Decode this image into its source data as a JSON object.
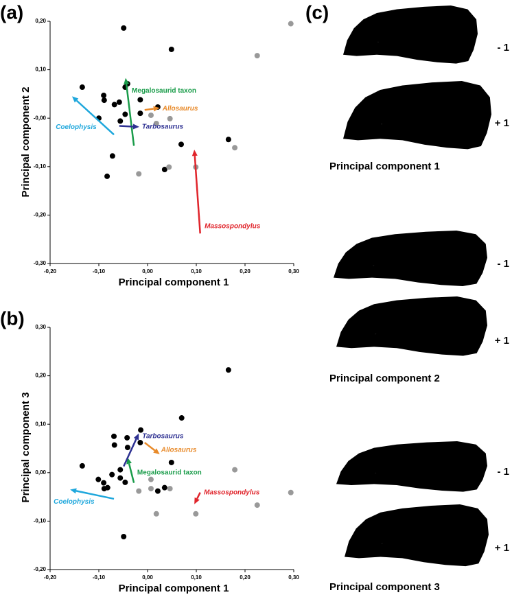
{
  "chart_data": [
    {
      "type": "scatter",
      "label": "(a)",
      "x_label": "Principal component 1",
      "y_label": "Principal component 2",
      "xlim": [
        -0.2,
        0.3
      ],
      "ylim": [
        -0.3,
        0.2
      ],
      "xticks": [
        {
          "value": -0.2,
          "label": "-0,20"
        },
        {
          "value": -0.1,
          "label": "-0,10"
        },
        {
          "value": 0,
          "label": "0,00"
        },
        {
          "value": 0.1,
          "label": "0,10"
        },
        {
          "value": 0.2,
          "label": "0,20"
        },
        {
          "value": 0.3,
          "label": "0,30"
        }
      ],
      "yticks": [
        {
          "value": -0.3,
          "label": "-0,30"
        },
        {
          "value": -0.2,
          "label": "-0,20"
        },
        {
          "value": -0.1,
          "label": "-0,10"
        },
        {
          "value": 0,
          "label": "-0,00"
        },
        {
          "value": 0.1,
          "label": "0,10"
        },
        {
          "value": 0.2,
          "label": "0,20"
        }
      ],
      "series": [
        {
          "color": "#000000",
          "x": [
            -0.049,
            0.049,
            -0.134,
            -0.09,
            -0.089,
            -0.041,
            -0.046,
            -0.058,
            -0.068,
            -0.015,
            -0.046,
            -0.015,
            0.021,
            -0.1,
            -0.056,
            0.069,
            -0.072,
            -0.083,
            0.035,
            0.166
          ],
          "values": [
            0.186,
            0.142,
            0.064,
            0.047,
            0.037,
            0.071,
            0.064,
            0.033,
            0.028,
            0.038,
            0.008,
            0.01,
            0.023,
            0.0,
            -0.006,
            -0.054,
            -0.078,
            -0.12,
            -0.106,
            -0.044
          ]
        },
        {
          "color": "#999999",
          "x": [
            0.294,
            0.225,
            0.007,
            0.018,
            0.046,
            0.179,
            0.044,
            -0.018,
            0.099
          ],
          "values": [
            0.195,
            0.129,
            0.006,
            -0.011,
            -0.001,
            -0.061,
            -0.101,
            -0.115,
            -0.101
          ]
        }
      ],
      "arrows": [
        {
          "text": "Megalosaurid taxon",
          "color": "#1a9c4a",
          "from": [
            -0.028,
            -0.057
          ],
          "to": [
            -0.045,
            0.083
          ]
        },
        {
          "text": "Allosaurus",
          "color": "#e88a2a",
          "from": [
            -0.006,
            0.017
          ],
          "to": [
            0.025,
            0.021
          ]
        },
        {
          "text": "Tarbosaurus",
          "color": "#2e3192",
          "from": [
            -0.058,
            -0.016
          ],
          "to": [
            -0.017,
            -0.018
          ]
        },
        {
          "text": "Coelophysis",
          "color": "#1ea7dc",
          "from": [
            -0.069,
            -0.034
          ],
          "to": [
            -0.155,
            0.045
          ]
        },
        {
          "text": "Massospondylus",
          "color": "#e0242b",
          "from": [
            0.108,
            -0.238
          ],
          "to": [
            0.096,
            -0.065
          ]
        }
      ]
    },
    {
      "type": "scatter",
      "label": "(b)",
      "x_label": "Principal component 1",
      "y_label": "Principal component 3",
      "xlim": [
        -0.2,
        0.3
      ],
      "ylim": [
        -0.2,
        0.3
      ],
      "xticks": [
        {
          "value": -0.2,
          "label": "-0,20"
        },
        {
          "value": -0.1,
          "label": "-0,10"
        },
        {
          "value": 0,
          "label": "0,00"
        },
        {
          "value": 0.1,
          "label": "0,10"
        },
        {
          "value": 0.2,
          "label": "0,20"
        },
        {
          "value": 0.3,
          "label": "0,30"
        }
      ],
      "yticks": [
        {
          "value": -0.2,
          "label": "-0,20"
        },
        {
          "value": -0.1,
          "label": "-0,10"
        },
        {
          "value": 0,
          "label": "0,00"
        },
        {
          "value": 0.1,
          "label": "0,10"
        },
        {
          "value": 0.2,
          "label": "0,20"
        },
        {
          "value": 0.3,
          "label": "0,30"
        }
      ],
      "series": [
        {
          "color": "#000000",
          "x": [
            0.166,
            0.07,
            -0.014,
            -0.069,
            -0.042,
            -0.068,
            -0.041,
            -0.015,
            -0.134,
            0.049,
            -0.101,
            -0.073,
            -0.056,
            -0.056,
            -0.09,
            -0.089,
            -0.082,
            -0.046,
            0.021,
            0.035,
            -0.049
          ],
          "values": [
            0.212,
            0.113,
            0.088,
            0.075,
            0.072,
            0.057,
            0.052,
            0.062,
            0.014,
            0.021,
            -0.014,
            -0.004,
            0.006,
            -0.011,
            -0.021,
            -0.033,
            -0.031,
            -0.02,
            -0.038,
            -0.031,
            -0.132
          ]
        },
        {
          "color": "#999999",
          "x": [
            0.179,
            0.007,
            -0.018,
            0.007,
            0.046,
            0.018,
            0.099,
            0.225,
            0.294
          ],
          "values": [
            0.006,
            -0.014,
            -0.038,
            -0.033,
            -0.033,
            -0.085,
            -0.085,
            -0.067,
            -0.041
          ]
        }
      ],
      "arrows": [
        {
          "text": "Megalosaurid taxon",
          "color": "#1a9c4a",
          "from": [
            -0.028,
            -0.021
          ],
          "to": [
            -0.041,
            0.031
          ]
        },
        {
          "text": "Allosaurus",
          "color": "#e88a2a",
          "from": [
            -0.006,
            0.062
          ],
          "to": [
            0.025,
            0.038
          ]
        },
        {
          "text": "Tarbosaurus",
          "color": "#2e3192",
          "from": [
            -0.049,
            0.013
          ],
          "to": [
            -0.018,
            0.081
          ]
        },
        {
          "text": "Coelophysis",
          "color": "#1ea7dc",
          "from": [
            -0.069,
            -0.054
          ],
          "to": [
            -0.159,
            -0.035
          ]
        },
        {
          "text": "Massospondylus",
          "color": "#e0242b",
          "from": [
            0.108,
            -0.041
          ],
          "to": [
            0.096,
            -0.065
          ]
        }
      ]
    }
  ],
  "diagram": {
    "label": "(c)",
    "components": [
      {
        "title": "Principal component 1",
        "minus": "- 1",
        "plus": "+ 1"
      },
      {
        "title": "Principal component 2",
        "minus": "- 1",
        "plus": "+ 1"
      },
      {
        "title": "Principal component 3",
        "minus": "- 1",
        "plus": "+ 1"
      }
    ]
  }
}
